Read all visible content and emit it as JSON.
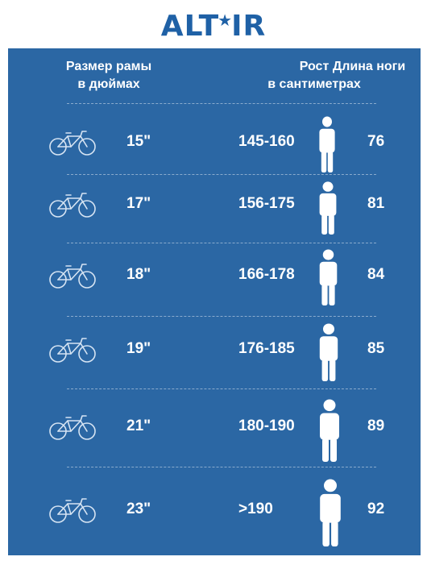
{
  "brand": {
    "name_left": "ALT",
    "star": "★",
    "name_right": "IR"
  },
  "header": {
    "frame_size": "Размер рамы\nв дюймах",
    "height": "Рост\nв сантиметрах",
    "leg_length": "Длина ноги"
  },
  "rows": [
    {
      "frame": "15\"",
      "height": "145-160",
      "leg": "76"
    },
    {
      "frame": "17\"",
      "height": "156-175",
      "leg": "81"
    },
    {
      "frame": "18\"",
      "height": "166-178",
      "leg": "84"
    },
    {
      "frame": "19\"",
      "height": "176-185",
      "leg": "85"
    },
    {
      "frame": "21\"",
      "height": "180-190",
      "leg": "89"
    },
    {
      "frame": "23\"",
      "height": ">190",
      "leg": "92"
    }
  ],
  "icons": {
    "bike": "bicycle-icon",
    "person": "person-icon"
  },
  "colors": {
    "brand": "#1f61a6",
    "panel": "#2b67a4",
    "text": "#ffffff"
  }
}
